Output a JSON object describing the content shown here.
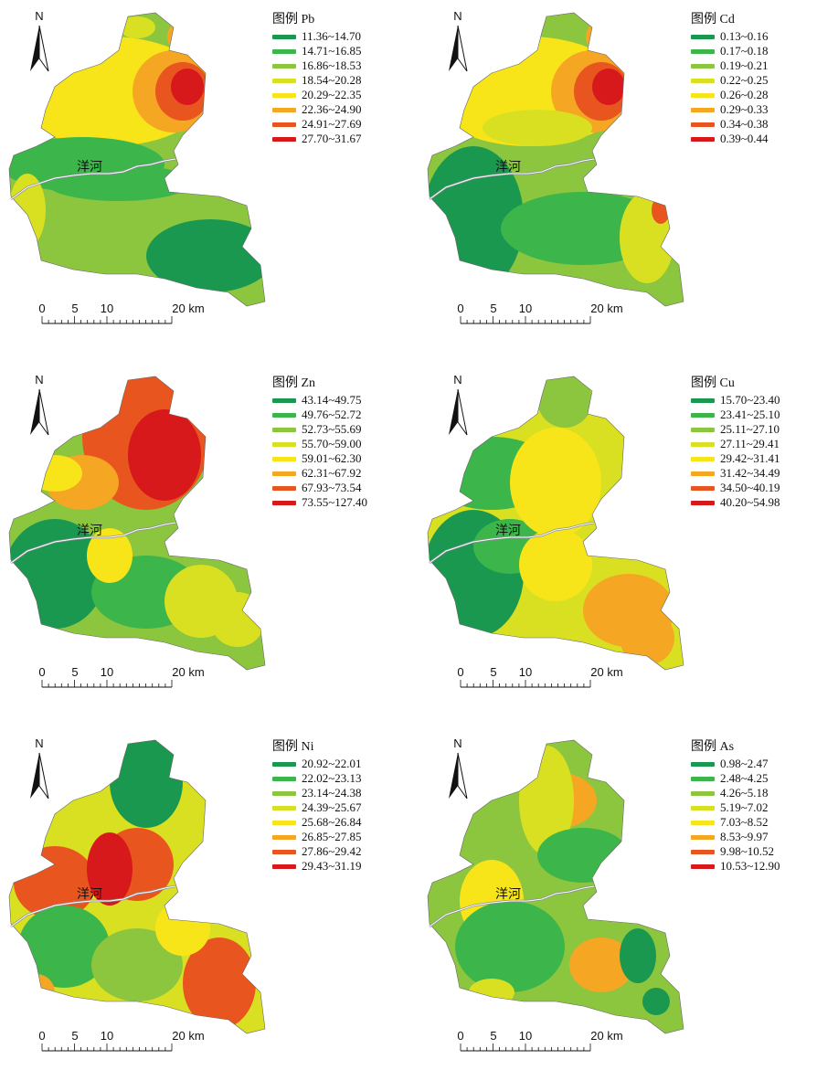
{
  "river_label": "洋河",
  "north_label": "N",
  "scale": {
    "ticks": [
      "0",
      "5",
      "10",
      "20 km"
    ]
  },
  "panels": [
    {
      "legend_title": "图例 Pb",
      "legend_items": [
        "11.36~14.70",
        "14.71~16.85",
        "16.86~18.53",
        "18.54~20.28",
        "20.29~22.35",
        "22.36~24.90",
        "24.91~27.69",
        "27.70~31.67"
      ]
    },
    {
      "legend_title": "图例 Cd",
      "legend_items": [
        "0.13~0.16",
        "0.17~0.18",
        "0.19~0.21",
        "0.22~0.25",
        "0.26~0.28",
        "0.29~0.33",
        "0.34~0.38",
        "0.39~0.44"
      ]
    },
    {
      "legend_title": "图例 Zn",
      "legend_items": [
        "43.14~49.75",
        "49.76~52.72",
        "52.73~55.69",
        "55.70~59.00",
        "59.01~62.30",
        "62.31~67.92",
        "67.93~73.54",
        "73.55~127.40"
      ]
    },
    {
      "legend_title": "图例 Cu",
      "legend_items": [
        "15.70~23.40",
        "23.41~25.10",
        "25.11~27.10",
        "27.11~29.41",
        "29.42~31.41",
        "31.42~34.49",
        "34.50~40.19",
        "40.20~54.98"
      ]
    },
    {
      "legend_title": "图例 Ni",
      "legend_items": [
        "20.92~22.01",
        "22.02~23.13",
        "23.14~24.38",
        "24.39~25.67",
        "25.68~26.84",
        "26.85~27.85",
        "27.86~29.42",
        "29.43~31.19"
      ]
    },
    {
      "legend_title": "图例 As",
      "legend_items": [
        "0.98~2.47",
        "2.48~4.25",
        "4.26~5.18",
        "5.19~7.02",
        "7.03~8.52",
        "8.53~9.97",
        "9.98~10.52",
        "10.53~12.90"
      ]
    }
  ],
  "class_colors": [
    "#1a9850",
    "#3cb54a",
    "#8cc63f",
    "#d9e021",
    "#f7e51a",
    "#f5a623",
    "#e8551f",
    "#d7191c"
  ]
}
